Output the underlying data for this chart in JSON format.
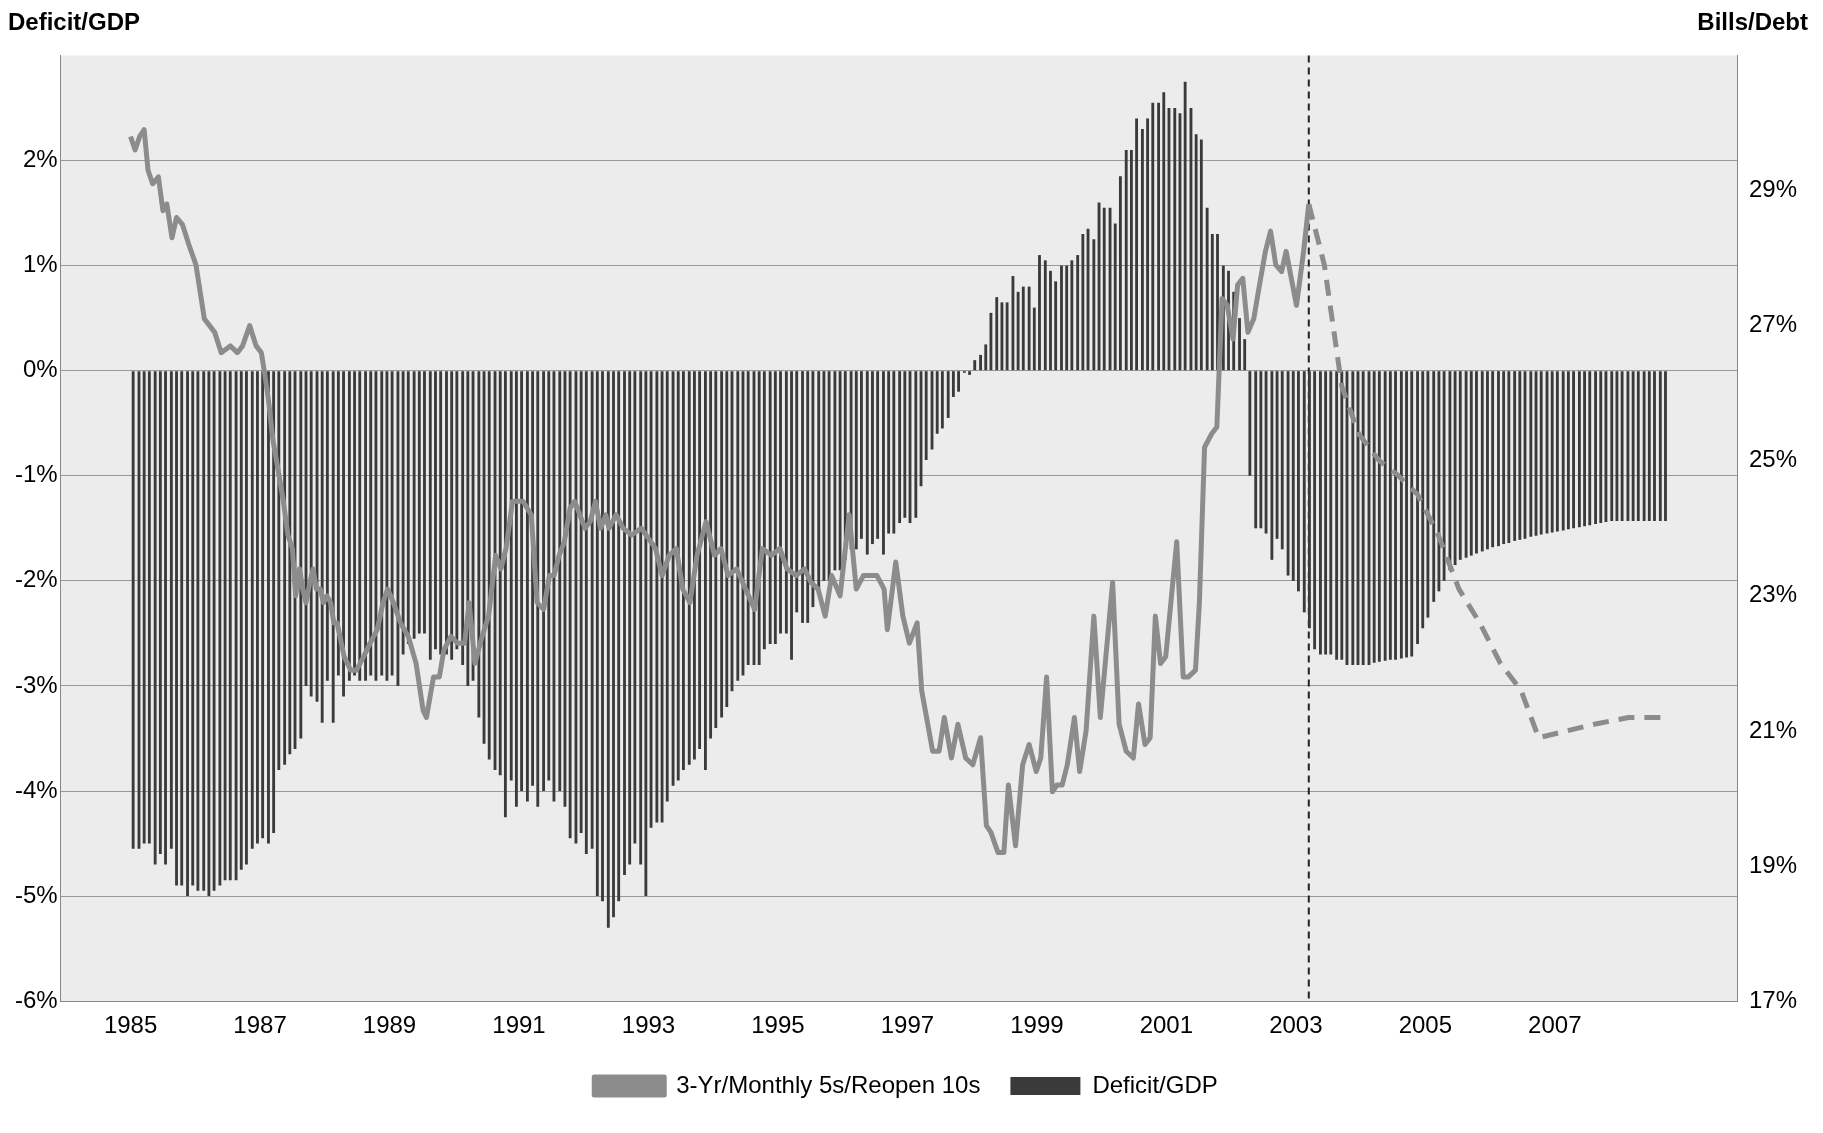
{
  "chart_data": {
    "type": "bar",
    "ylabel": "Deficit/GDP",
    "y2label": "Bills/Debt",
    "grid": "y",
    "legend": "bottom",
    "xlim": [
      1985,
      2008.75
    ],
    "xticks": [
      1985,
      1987,
      1989,
      1991,
      1993,
      1995,
      1997,
      1999,
      2001,
      2003,
      2005,
      2007
    ],
    "ylim": [
      -6,
      3
    ],
    "yticks": [
      {
        "value": -6,
        "label": "-6%"
      },
      {
        "value": -5,
        "label": "-5%"
      },
      {
        "value": -4,
        "label": "-4%"
      },
      {
        "value": -3,
        "label": "-3%"
      },
      {
        "value": -2,
        "label": "-2%"
      },
      {
        "value": -1,
        "label": "-1%"
      },
      {
        "value": 0,
        "label": "0%"
      },
      {
        "value": 1,
        "label": "1%"
      },
      {
        "value": 2,
        "label": "2%"
      }
    ],
    "y2lim": [
      17,
      31
    ],
    "y2ticks": [
      {
        "value": 17,
        "label": "17%"
      },
      {
        "value": 19,
        "label": "19%"
      },
      {
        "value": 21,
        "label": "21%"
      },
      {
        "value": 23,
        "label": "23%"
      },
      {
        "value": 25,
        "label": "25%"
      },
      {
        "value": 27,
        "label": "27%"
      },
      {
        "value": 29,
        "label": "29%"
      }
    ],
    "ref_lines": [
      {
        "axis": "x",
        "value": 2003.2,
        "color": "#222222",
        "line_style": "dashed"
      }
    ],
    "x": [
      1985.04,
      1985.13,
      1985.21,
      1985.29,
      1985.38,
      1985.46,
      1985.54,
      1985.63,
      1985.71,
      1985.79,
      1985.88,
      1985.96,
      1986.04,
      1986.13,
      1986.21,
      1986.29,
      1986.38,
      1986.46,
      1986.54,
      1986.63,
      1986.71,
      1986.79,
      1986.88,
      1986.96,
      1987.04,
      1987.13,
      1987.21,
      1987.29,
      1987.38,
      1987.46,
      1987.54,
      1987.63,
      1987.71,
      1987.79,
      1987.88,
      1987.96,
      1988.04,
      1988.13,
      1988.21,
      1988.29,
      1988.38,
      1988.46,
      1988.54,
      1988.63,
      1988.71,
      1988.79,
      1988.88,
      1988.96,
      1989.04,
      1989.13,
      1989.21,
      1989.29,
      1989.38,
      1989.46,
      1989.54,
      1989.63,
      1989.71,
      1989.79,
      1989.88,
      1989.96,
      1990.04,
      1990.13,
      1990.21,
      1990.29,
      1990.38,
      1990.46,
      1990.54,
      1990.63,
      1990.71,
      1990.79,
      1990.88,
      1990.96,
      1991.04,
      1991.13,
      1991.21,
      1991.29,
      1991.38,
      1991.46,
      1991.54,
      1991.63,
      1991.71,
      1991.79,
      1991.88,
      1991.96,
      1992.04,
      1992.13,
      1992.21,
      1992.29,
      1992.38,
      1992.46,
      1992.54,
      1992.63,
      1992.71,
      1992.79,
      1992.88,
      1992.96,
      1993.04,
      1993.13,
      1993.21,
      1993.29,
      1993.38,
      1993.46,
      1993.54,
      1993.63,
      1993.71,
      1993.79,
      1993.88,
      1993.96,
      1994.04,
      1994.13,
      1994.21,
      1994.29,
      1994.38,
      1994.46,
      1994.54,
      1994.63,
      1994.71,
      1994.79,
      1994.88,
      1994.96,
      1995.04,
      1995.13,
      1995.21,
      1995.29,
      1995.38,
      1995.46,
      1995.54,
      1995.63,
      1995.71,
      1995.79,
      1995.88,
      1995.96,
      1996.04,
      1996.13,
      1996.21,
      1996.29,
      1996.38,
      1996.46,
      1996.54,
      1996.63,
      1996.71,
      1996.79,
      1996.88,
      1996.96,
      1997.04,
      1997.13,
      1997.21,
      1997.29,
      1997.38,
      1997.46,
      1997.54,
      1997.63,
      1997.71,
      1997.79,
      1997.88,
      1997.96,
      1998.04,
      1998.13,
      1998.21,
      1998.29,
      1998.38,
      1998.46,
      1998.54,
      1998.63,
      1998.71,
      1998.79,
      1998.88,
      1998.96,
      1999.04,
      1999.13,
      1999.21,
      1999.29,
      1999.38,
      1999.46,
      1999.54,
      1999.63,
      1999.71,
      1999.79,
      1999.88,
      1999.96,
      2000.04,
      2000.13,
      2000.21,
      2000.29,
      2000.38,
      2000.46,
      2000.54,
      2000.63,
      2000.71,
      2000.79,
      2000.88,
      2000.96,
      2001.04,
      2001.13,
      2001.21,
      2001.29,
      2001.38,
      2001.46,
      2001.54,
      2001.63,
      2001.71,
      2001.79,
      2001.88,
      2001.96,
      2002.04,
      2002.13,
      2002.21,
      2002.29,
      2002.38,
      2002.46,
      2002.54,
      2002.63,
      2002.71,
      2002.79,
      2002.88,
      2002.96,
      2003.04,
      2003.13,
      2003.21,
      2003.29,
      2003.38,
      2003.46,
      2003.54,
      2003.63,
      2003.71,
      2003.79,
      2003.88,
      2003.96,
      2004.04,
      2004.13,
      2004.21,
      2004.29,
      2004.38,
      2004.46,
      2004.54,
      2004.63,
      2004.71,
      2004.79,
      2004.88,
      2004.96,
      2005.04,
      2005.13,
      2005.21,
      2005.29,
      2005.38,
      2005.46,
      2005.54,
      2005.63,
      2005.71,
      2005.79,
      2005.88,
      2005.96,
      2006.04,
      2006.13,
      2006.21,
      2006.29,
      2006.38,
      2006.46,
      2006.54,
      2006.63,
      2006.71,
      2006.79,
      2006.88,
      2006.96,
      2007.04,
      2007.13,
      2007.21,
      2007.29,
      2007.38,
      2007.46,
      2007.54,
      2007.63,
      2007.71,
      2007.79,
      2007.88,
      2007.96,
      2008.04,
      2008.13,
      2008.21,
      2008.29,
      2008.38,
      2008.46,
      2008.54,
      2008.63,
      2008.71
    ],
    "series": [
      {
        "name": "Deficit/GDP",
        "color": "#3a3a3a",
        "values": [
          -4.55,
          -4.55,
          -4.5,
          -4.5,
          -4.7,
          -4.6,
          -4.7,
          -4.55,
          -4.9,
          -4.9,
          -5.0,
          -4.9,
          -4.95,
          -4.95,
          -5.0,
          -4.95,
          -4.9,
          -4.85,
          -4.85,
          -4.85,
          -4.75,
          -4.7,
          -4.55,
          -4.5,
          -4.45,
          -4.5,
          -4.4,
          -3.8,
          -3.75,
          -3.65,
          -3.6,
          -3.5,
          -3.0,
          -3.1,
          -3.15,
          -3.35,
          -2.95,
          -3.35,
          -2.9,
          -3.1,
          -2.95,
          -2.9,
          -2.95,
          -2.95,
          -2.9,
          -2.95,
          -2.9,
          -2.95,
          -2.9,
          -3.0,
          -2.7,
          -2.6,
          -2.55,
          -2.5,
          -2.5,
          -2.75,
          -2.65,
          -2.7,
          -2.7,
          -2.75,
          -2.65,
          -2.8,
          -3.0,
          -2.95,
          -3.3,
          -3.55,
          -3.7,
          -3.8,
          -3.85,
          -4.25,
          -3.9,
          -4.15,
          -4.0,
          -4.1,
          -3.95,
          -4.15,
          -4.0,
          -3.9,
          -4.1,
          -4.0,
          -4.15,
          -4.45,
          -4.5,
          -4.4,
          -4.6,
          -4.55,
          -5.0,
          -5.05,
          -5.3,
          -5.2,
          -5.05,
          -4.8,
          -4.7,
          -4.5,
          -4.7,
          -5.0,
          -4.35,
          -4.3,
          -4.3,
          -4.1,
          -3.95,
          -3.9,
          -3.8,
          -3.75,
          -3.7,
          -3.6,
          -3.8,
          -3.5,
          -3.4,
          -3.3,
          -3.2,
          -3.05,
          -2.95,
          -2.9,
          -2.8,
          -2.8,
          -2.8,
          -2.65,
          -2.6,
          -2.6,
          -2.5,
          -2.5,
          -2.75,
          -2.3,
          -2.4,
          -2.4,
          -2.25,
          -2.1,
          -2.0,
          -2.0,
          -1.9,
          -1.9,
          -1.8,
          -1.7,
          -1.7,
          -1.6,
          -1.75,
          -1.65,
          -1.6,
          -1.75,
          -1.55,
          -1.55,
          -1.45,
          -1.4,
          -1.45,
          -1.4,
          -1.1,
          -0.85,
          -0.75,
          -0.6,
          -0.55,
          -0.45,
          -0.25,
          -0.2,
          -0.02,
          -0.04,
          0.1,
          0.15,
          0.25,
          0.55,
          0.7,
          0.65,
          0.65,
          0.9,
          0.75,
          0.8,
          0.8,
          0.6,
          1.1,
          1.05,
          0.95,
          0.85,
          1.0,
          1.0,
          1.05,
          1.1,
          1.3,
          1.35,
          1.25,
          1.6,
          1.55,
          1.55,
          1.4,
          1.85,
          2.1,
          2.1,
          2.4,
          2.3,
          2.4,
          2.55,
          2.55,
          2.65,
          2.5,
          2.5,
          2.45,
          2.75,
          2.5,
          2.25,
          2.2,
          1.55,
          1.3,
          1.3,
          1.0,
          0.95,
          0.75,
          0.5,
          0.3,
          -1.0,
          -1.5,
          -1.5,
          -1.55,
          -1.8,
          -1.6,
          -1.7,
          -1.95,
          -2.0,
          -2.1,
          -2.3,
          -2.45,
          -2.65,
          -2.7,
          -2.7,
          -2.7,
          -2.75,
          -2.75,
          -2.8,
          -2.8,
          -2.8,
          -2.8,
          -2.8,
          -2.78,
          -2.77,
          -2.76,
          -2.75,
          -2.75,
          -2.74,
          -2.73,
          -2.72,
          -2.6,
          -2.45,
          -2.35,
          -2.2,
          -2.1,
          -2.0,
          -1.9,
          -1.85,
          -1.8,
          -1.78,
          -1.76,
          -1.74,
          -1.72,
          -1.7,
          -1.68,
          -1.67,
          -1.65,
          -1.64,
          -1.62,
          -1.61,
          -1.6,
          -1.58,
          -1.57,
          -1.56,
          -1.55,
          -1.54,
          -1.53,
          -1.52,
          -1.51,
          -1.5,
          -1.49,
          -1.48,
          -1.47,
          -1.46,
          -1.45,
          -1.44,
          -1.43,
          -1.43,
          -1.43,
          -1.43,
          -1.43,
          -1.43,
          -1.43,
          -1.43,
          -1.43,
          -1.43,
          -1.43
        ]
      },
      {
        "name": "3-Yr/Monthly 5s/Reopen 10s",
        "type": "line",
        "axis": "y2",
        "color": "#8c8c8c",
        "line_style": "solid",
        "x": [
          1985.0,
          1985.07,
          1985.14,
          1985.21,
          1985.27,
          1985.34,
          1985.43,
          1985.5,
          1985.56,
          1985.64,
          1985.71,
          1985.8,
          1985.9,
          1986.01,
          1986.14,
          1986.22,
          1986.3,
          1986.4,
          1986.54,
          1986.65,
          1986.73,
          1986.84,
          1986.94,
          1987.02,
          1987.07,
          1987.13,
          1987.2,
          1987.29,
          1987.36,
          1987.43,
          1987.5,
          1987.55,
          1987.61,
          1987.66,
          1987.71,
          1987.77,
          1987.82,
          1987.87,
          1987.93,
          1987.98,
          1988.03,
          1988.09,
          1988.14,
          1988.19,
          1988.3,
          1988.4,
          1988.49,
          1988.6,
          1988.7,
          1988.81,
          1988.9,
          1988.97,
          1989.06,
          1989.17,
          1989.29,
          1989.41,
          1989.52,
          1989.57,
          1989.68,
          1989.77,
          1989.84,
          1989.95,
          1990.05,
          1990.16,
          1990.23,
          1990.32,
          1990.43,
          1990.53,
          1990.64,
          1990.72,
          1990.8,
          1990.9,
          1990.99,
          1991.06,
          1991.19,
          1991.28,
          1991.38,
          1991.47,
          1991.54,
          1991.62,
          1991.7,
          1991.79,
          1991.86,
          1991.94,
          1992.02,
          1992.1,
          1992.18,
          1992.26,
          1992.34,
          1992.39,
          1992.5,
          1992.61,
          1992.74,
          1992.89,
          1993.11,
          1993.21,
          1993.32,
          1993.43,
          1993.53,
          1993.64,
          1993.75,
          1993.89,
          1994.02,
          1994.12,
          1994.23,
          1994.36,
          1994.5,
          1994.64,
          1994.76,
          1994.9,
          1995.03,
          1995.14,
          1995.28,
          1995.41,
          1995.51,
          1995.62,
          1995.73,
          1995.83,
          1995.96,
          1996.1,
          1996.21,
          1996.32,
          1996.53,
          1996.64,
          1996.69,
          1996.82,
          1996.93,
          1997.03,
          1997.15,
          1997.22,
          1997.39,
          1997.49,
          1997.57,
          1997.68,
          1997.78,
          1997.9,
          1998.01,
          1998.13,
          1998.22,
          1998.29,
          1998.4,
          1998.49,
          1998.56,
          1998.67,
          1998.78,
          1998.88,
          1998.99,
          1999.06,
          1999.15,
          1999.24,
          1999.31,
          1999.39,
          1999.47,
          1999.58,
          1999.66,
          1999.76,
          1999.88,
          1999.98,
          2000.17,
          2000.27,
          2000.38,
          2000.49,
          2000.57,
          2000.67,
          2000.75,
          2000.83,
          2000.91,
          2000.99,
          2001.07,
          2001.16,
          2001.26,
          2001.34,
          2001.45,
          2001.51,
          2001.59,
          2001.7,
          2001.78,
          2001.86,
          2001.94,
          2002.03,
          2002.1,
          2002.18,
          2002.26,
          2002.35,
          2002.42,
          2002.53,
          2002.61,
          2002.69,
          2002.78,
          2002.85,
          2002.93,
          2003.01,
          2003.12,
          2003.2
        ],
        "values": [
          29.8,
          29.6,
          29.8,
          29.9,
          29.3,
          29.1,
          29.2,
          28.7,
          28.8,
          28.3,
          28.6,
          28.5,
          28.2,
          27.9,
          27.1,
          27.0,
          26.9,
          26.6,
          26.7,
          26.6,
          26.7,
          27.0,
          26.7,
          26.6,
          26.3,
          25.9,
          25.3,
          24.8,
          24.4,
          23.9,
          23.7,
          23.0,
          23.4,
          23.1,
          22.9,
          23.2,
          23.4,
          23.1,
          23.1,
          22.9,
          23.0,
          22.9,
          22.6,
          22.6,
          22.1,
          21.9,
          21.9,
          22.1,
          22.3,
          22.5,
          22.9,
          23.1,
          22.9,
          22.6,
          22.4,
          22.0,
          21.3,
          21.2,
          21.8,
          21.8,
          22.2,
          22.4,
          22.3,
          22.3,
          22.9,
          22.0,
          22.4,
          22.7,
          23.6,
          23.4,
          23.7,
          24.4,
          24.4,
          24.4,
          24.2,
          22.9,
          22.8,
          23.3,
          23.3,
          23.6,
          23.8,
          24.3,
          24.4,
          24.2,
          24.0,
          24.1,
          24.4,
          24.0,
          24.2,
          24.0,
          24.2,
          24.0,
          23.9,
          24.0,
          23.7,
          23.3,
          23.6,
          23.7,
          23.1,
          22.9,
          23.6,
          24.1,
          23.6,
          23.7,
          23.3,
          23.4,
          23.1,
          22.8,
          23.7,
          23.6,
          23.7,
          23.4,
          23.3,
          23.4,
          23.2,
          23.1,
          22.7,
          23.3,
          23.0,
          24.2,
          23.1,
          23.3,
          23.3,
          23.1,
          22.5,
          23.5,
          22.7,
          22.3,
          22.6,
          21.6,
          20.7,
          20.7,
          21.2,
          20.6,
          21.1,
          20.6,
          20.5,
          20.9,
          19.6,
          19.5,
          19.2,
          19.2,
          20.2,
          19.3,
          20.5,
          20.8,
          20.4,
          20.6,
          21.8,
          20.1,
          20.2,
          20.2,
          20.5,
          21.2,
          20.4,
          21.0,
          22.7,
          21.2,
          23.2,
          21.1,
          20.7,
          20.6,
          21.4,
          20.8,
          20.9,
          22.7,
          22.0,
          22.1,
          22.9,
          23.8,
          21.8,
          21.8,
          21.9,
          22.9,
          25.2,
          25.4,
          25.5,
          27.4,
          27.3,
          26.8,
          27.6,
          27.7,
          26.9,
          27.1,
          27.5,
          28.1,
          28.4,
          27.9,
          27.8,
          28.1,
          27.7,
          27.3,
          28.1,
          28.8
        ]
      },
      {
        "type": "line",
        "axis": "y2",
        "color": "#8c8c8c",
        "line_style": "dashed",
        "x": [
          2003.2,
          2003.28,
          2003.44,
          2003.71,
          2003.97,
          2004.29,
          2004.56,
          2004.88,
          2005.2,
          2005.52,
          2005.84,
          2006.16,
          2006.48,
          2006.75,
          2007.18,
          2007.61,
          2008.14,
          2008.73
        ],
        "values": [
          28.8,
          28.5,
          27.9,
          26.1,
          25.4,
          25.0,
          24.8,
          24.5,
          23.9,
          23.1,
          22.6,
          22.0,
          21.6,
          20.9,
          21.0,
          21.1,
          21.2,
          21.2
        ]
      }
    ]
  }
}
